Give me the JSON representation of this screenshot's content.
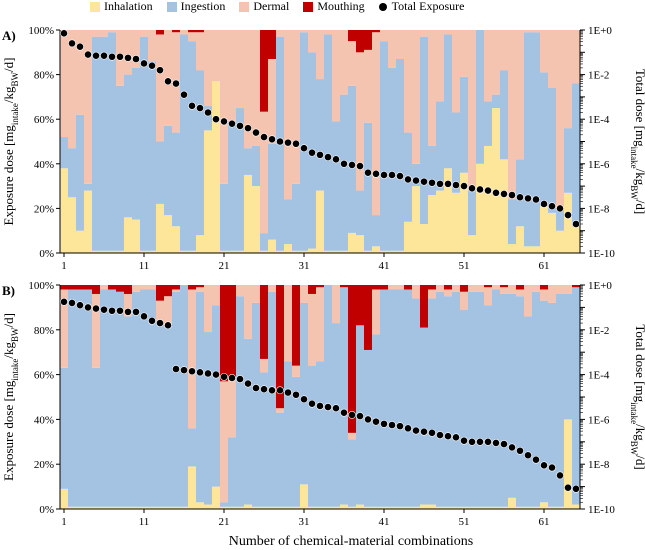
{
  "legend": {
    "inhalation": "Inhalation",
    "ingestion": "Ingestion",
    "dermal": "Dermal",
    "mouthing": "Mouthing",
    "total": "Total Exposure"
  },
  "colors": {
    "inhalation": "#fde699",
    "ingestion": "#a4c3e3",
    "dermal": "#f5c4b0",
    "mouthing": "#c00000",
    "dots": "#000000"
  },
  "axis_labels": {
    "ylabel_left": "Exposure dose [mg_intake/kg_BW/d]",
    "ylabel_right": "Total dose [mg_intake/kg_BW/d]",
    "xlabel": "Number of chemical-material combinations"
  },
  "chart_data": [
    {
      "type": "bar",
      "panel_label": "A)",
      "stacked": true,
      "n": 65,
      "x_ticks": [
        1,
        11,
        21,
        31,
        41,
        51,
        61
      ],
      "left_axis": {
        "label": "Exposure dose [mg_intake/kg_BW/d]",
        "range": [
          0,
          100
        ],
        "ticks": [
          "0%",
          "20%",
          "40%",
          "60%",
          "80%",
          "100%"
        ]
      },
      "right_axis": {
        "label": "Total dose [mg_intake/kg_BW/d]",
        "scale": "log",
        "range_exp": [
          -10,
          0
        ],
        "ticks": [
          "1E-10",
          "1E-8",
          "1E-6",
          "1E-4",
          "1E-2",
          "1E+0"
        ]
      },
      "series_order": [
        "inhalation",
        "ingestion",
        "dermal",
        "mouthing"
      ],
      "series": [
        {
          "name": "Inhalation",
          "values": [
            38,
            25,
            10,
            28,
            1,
            1,
            1,
            1,
            16,
            15,
            1,
            1,
            22,
            17,
            12,
            1,
            1,
            8,
            55,
            77,
            1,
            1,
            1,
            35,
            30,
            1,
            6,
            1,
            4,
            1,
            1,
            2,
            28,
            1,
            1,
            1,
            9,
            8,
            1,
            3,
            1,
            1,
            1,
            14,
            30,
            13,
            26,
            28,
            38,
            27,
            36,
            8,
            40,
            48,
            65,
            42,
            4,
            12,
            3,
            3,
            21,
            18,
            10,
            27,
            12
          ]
        },
        {
          "name": "Ingestion",
          "values": [
            14,
            22,
            52,
            3,
            96,
            96,
            98,
            74,
            64,
            68,
            96,
            85,
            28,
            40,
            42,
            97,
            94,
            74,
            11,
            0,
            30,
            58,
            64,
            12,
            18,
            8,
            43,
            96,
            20,
            30,
            98,
            88,
            50,
            97,
            58,
            70,
            66,
            20,
            58,
            14,
            94,
            82,
            86,
            40,
            10,
            84,
            22,
            40,
            60,
            36,
            43,
            20,
            60,
            20,
            6,
            40,
            20,
            30,
            96,
            96,
            60,
            56,
            10,
            29,
            64
          ]
        },
        {
          "name": "Dermal",
          "values": [
            48,
            53,
            38,
            69,
            3,
            3,
            1,
            25,
            20,
            17,
            3,
            14,
            48,
            43,
            45,
            2,
            4,
            17,
            34,
            23,
            69,
            41,
            35,
            53,
            52,
            55,
            38,
            3,
            76,
            69,
            1,
            10,
            22,
            2,
            41,
            29,
            20,
            62,
            33,
            82,
            5,
            17,
            13,
            46,
            60,
            3,
            52,
            32,
            2,
            37,
            21,
            72,
            0,
            32,
            29,
            18,
            76,
            58,
            1,
            1,
            19,
            26,
            80,
            44,
            24
          ]
        },
        {
          "name": "Mouthing",
          "values": [
            0,
            0,
            0,
            0,
            0,
            0,
            0,
            0,
            0,
            0,
            0,
            0,
            2,
            0,
            1,
            0,
            1,
            1,
            0,
            0,
            0,
            0,
            0,
            0,
            0,
            37,
            13,
            0,
            0,
            0,
            0,
            0,
            0,
            0,
            0,
            0,
            5,
            10,
            9,
            1,
            0,
            0,
            0,
            0,
            0,
            0,
            0,
            0,
            0,
            0,
            0,
            0,
            0,
            0,
            0,
            0,
            0,
            0,
            0,
            0,
            0,
            0,
            0,
            0,
            0
          ]
        },
        {
          "name": "Total Exposure",
          "values_log10": [
            -0.15,
            -0.6,
            -0.75,
            -1.1,
            -1.15,
            -1.15,
            -1.2,
            -1.2,
            -1.25,
            -1.3,
            -1.5,
            -1.6,
            -1.8,
            -2.3,
            -2.4,
            -2.9,
            -3.4,
            -3.5,
            -3.7,
            -4.0,
            -4.1,
            -4.2,
            -4.3,
            -4.4,
            -4.6,
            -4.8,
            -4.9,
            -5.0,
            -5.05,
            -5.1,
            -5.3,
            -5.5,
            -5.6,
            -5.7,
            -5.8,
            -6.0,
            -6.05,
            -6.1,
            -6.4,
            -6.45,
            -6.5,
            -6.5,
            -6.55,
            -6.7,
            -6.75,
            -6.8,
            -6.85,
            -6.9,
            -6.9,
            -6.95,
            -7.0,
            -7.1,
            -7.15,
            -7.2,
            -7.3,
            -7.35,
            -7.4,
            -7.5,
            -7.55,
            -7.6,
            -7.8,
            -7.9,
            -8.0,
            -8.3,
            -8.7
          ]
        }
      ]
    },
    {
      "type": "bar",
      "panel_label": "B)",
      "stacked": true,
      "n": 65,
      "x_ticks": [
        1,
        11,
        21,
        31,
        41,
        51,
        61
      ],
      "left_axis": {
        "label": "Exposure dose [mg_intake/kg_BW/d]",
        "range": [
          0,
          100
        ],
        "ticks": [
          "0%",
          "20%",
          "40%",
          "60%",
          "80%",
          "100%"
        ]
      },
      "right_axis": {
        "label": "Total dose [mg_intake/kg_BW/d]",
        "scale": "log",
        "range_exp": [
          -10,
          0
        ],
        "ticks": [
          "1E-10",
          "1E-8",
          "1E-6",
          "1E-4",
          "1E-2",
          "1E+0"
        ]
      },
      "series_order": [
        "inhalation",
        "ingestion",
        "dermal",
        "mouthing"
      ],
      "series": [
        {
          "name": "Inhalation",
          "values": [
            9,
            1,
            1,
            1,
            1,
            1,
            1,
            1,
            1,
            1,
            1,
            1,
            1,
            1,
            1,
            1,
            19,
            3,
            2,
            10,
            1,
            1,
            1,
            2,
            1,
            1,
            1,
            1,
            1,
            1,
            11,
            1,
            1,
            1,
            1,
            2,
            1,
            2,
            1,
            1,
            1,
            1,
            1,
            1,
            1,
            2,
            2,
            1,
            1,
            1,
            1,
            1,
            1,
            1,
            1,
            1,
            5,
            1,
            1,
            1,
            3,
            1,
            1,
            40,
            2
          ]
        },
        {
          "name": "Ingestion",
          "values": [
            54,
            97,
            97,
            97,
            62,
            97,
            97,
            96,
            85,
            96,
            97,
            97,
            83,
            81,
            96,
            99,
            17,
            94,
            77,
            81,
            2,
            31,
            94,
            74,
            91,
            60,
            96,
            42,
            65,
            58,
            81,
            63,
            65,
            99,
            82,
            97,
            30,
            80,
            70,
            77,
            97,
            97,
            97,
            97,
            93,
            79,
            92,
            96,
            94,
            96,
            88,
            96,
            96,
            90,
            97,
            96,
            91,
            94,
            85,
            96,
            90,
            91,
            95,
            56,
            97
          ]
        },
        {
          "name": "Dermal",
          "values": [
            35,
            0,
            0,
            0,
            33,
            2,
            0,
            0,
            10,
            3,
            2,
            2,
            9,
            13,
            1,
            0,
            62,
            2,
            21,
            9,
            54,
            27,
            5,
            24,
            8,
            6,
            3,
            2,
            34,
            5,
            8,
            32,
            33,
            0,
            17,
            0,
            3,
            0,
            0,
            20,
            0,
            2,
            2,
            0,
            6,
            0,
            4,
            3,
            3,
            3,
            8,
            3,
            3,
            8,
            2,
            3,
            4,
            3,
            14,
            3,
            5,
            8,
            4,
            4,
            0
          ]
        },
        {
          "name": "Mouthing",
          "values": [
            2,
            2,
            2,
            2,
            4,
            0,
            2,
            3,
            4,
            0,
            0,
            0,
            7,
            5,
            2,
            0,
            2,
            1,
            0,
            0,
            43,
            41,
            0,
            0,
            0,
            33,
            0,
            55,
            0,
            36,
            0,
            4,
            1,
            0,
            0,
            1,
            66,
            18,
            29,
            2,
            2,
            0,
            0,
            2,
            0,
            19,
            2,
            0,
            2,
            0,
            3,
            0,
            0,
            1,
            0,
            1,
            0,
            2,
            0,
            0,
            2,
            0,
            0,
            0,
            1
          ]
        },
        {
          "name": "Total Exposure",
          "values_log10": [
            -0.75,
            -0.8,
            -0.9,
            -1.0,
            -1.05,
            -1.1,
            -1.15,
            -1.15,
            -1.2,
            -1.2,
            -1.4,
            -1.6,
            -1.7,
            -1.8,
            -3.75,
            -3.8,
            -3.85,
            -3.9,
            -3.95,
            -4.0,
            -4.1,
            -4.15,
            -4.2,
            -4.4,
            -4.6,
            -4.65,
            -4.7,
            -4.7,
            -4.8,
            -4.9,
            -5.1,
            -5.3,
            -5.4,
            -5.45,
            -5.5,
            -5.7,
            -5.8,
            -5.85,
            -6.0,
            -6.1,
            -6.2,
            -6.25,
            -6.3,
            -6.4,
            -6.5,
            -6.55,
            -6.6,
            -6.7,
            -6.75,
            -6.8,
            -6.95,
            -7.0,
            -7.0,
            -7.0,
            -7.05,
            -7.1,
            -7.25,
            -7.4,
            -7.6,
            -7.8,
            -8.05,
            -8.15,
            -8.5,
            -9.05,
            -9.1
          ]
        }
      ]
    }
  ]
}
